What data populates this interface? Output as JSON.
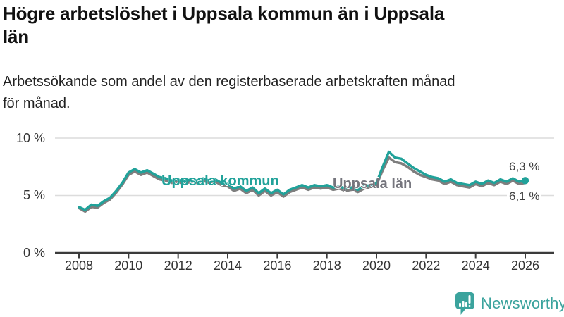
{
  "header": {
    "title_lines": [
      "Högre arbetslöshet i Uppsala kommun än i Uppsala",
      "län"
    ],
    "subtitle_lines": [
      "Arbetssökande som andel av den registerbaserade arbetskraften månad",
      "för månad."
    ]
  },
  "chart_data": {
    "type": "line",
    "title": "Högre arbetslöshet i Uppsala kommun än i Uppsala län",
    "subtitle": "Arbetssökande som andel av den registerbaserade arbetskraften månad för månad.",
    "xlabel": "",
    "ylabel": "",
    "ylim": [
      0,
      10
    ],
    "grid": "horizontal-only",
    "legend_position": "inline-labels-on-lines",
    "y_ticks": [
      0,
      5,
      10
    ],
    "y_tick_labels": [
      "0 %",
      "5 %",
      "10 %"
    ],
    "x_ticks": [
      2008,
      2010,
      2012,
      2014,
      2016,
      2018,
      2020,
      2022,
      2024,
      2026
    ],
    "x_tick_labels": [
      "2008",
      "2010",
      "2012",
      "2014",
      "2016",
      "2018",
      "2020",
      "2022",
      "2024",
      "2026"
    ],
    "x_unit": "year (monthly series, values estimated quarterly)",
    "x": [
      2008,
      2008.25,
      2008.5,
      2008.75,
      2009,
      2009.25,
      2009.5,
      2009.75,
      2010,
      2010.25,
      2010.5,
      2010.75,
      2011,
      2011.25,
      2011.5,
      2011.75,
      2012,
      2012.25,
      2012.5,
      2012.75,
      2013,
      2013.25,
      2013.5,
      2013.75,
      2014,
      2014.25,
      2014.5,
      2014.75,
      2015,
      2015.25,
      2015.5,
      2015.75,
      2016,
      2016.25,
      2016.5,
      2016.75,
      2017,
      2017.25,
      2017.5,
      2017.75,
      2018,
      2018.25,
      2018.5,
      2018.75,
      2019,
      2019.25,
      2019.5,
      2019.75,
      2020,
      2020.25,
      2020.5,
      2020.75,
      2021,
      2021.25,
      2021.5,
      2021.75,
      2022,
      2022.25,
      2022.5,
      2022.75,
      2023,
      2023.25,
      2023.5,
      2023.75,
      2024,
      2024.25,
      2024.5,
      2024.75,
      2025,
      2025.25,
      2025.5,
      2025.75,
      2026
    ],
    "series": [
      {
        "name": "Uppsala kommun",
        "color": "#21a29a",
        "label_color": "#21a29a",
        "end_label": "6,3 %",
        "end_value": 6.3,
        "end_dot": true,
        "values": [
          4.0,
          3.75,
          4.2,
          4.1,
          4.5,
          4.8,
          5.4,
          6.1,
          7.0,
          7.3,
          7.0,
          7.2,
          6.9,
          6.6,
          6.5,
          6.3,
          6.4,
          6.2,
          6.4,
          6.3,
          6.5,
          6.3,
          6.4,
          6.1,
          6.0,
          5.6,
          5.8,
          5.4,
          5.7,
          5.2,
          5.6,
          5.2,
          5.5,
          5.1,
          5.5,
          5.7,
          5.9,
          5.7,
          5.9,
          5.8,
          5.9,
          5.7,
          5.8,
          5.6,
          5.7,
          5.5,
          5.8,
          5.9,
          6.1,
          7.5,
          8.8,
          8.3,
          8.2,
          7.8,
          7.4,
          7.1,
          6.8,
          6.6,
          6.5,
          6.2,
          6.4,
          6.1,
          6.0,
          5.9,
          6.2,
          6.0,
          6.3,
          6.1,
          6.4,
          6.2,
          6.5,
          6.2,
          6.3
        ]
      },
      {
        "name": "Uppsala län",
        "color": "#7e7e7e",
        "label_color": "#75757d",
        "end_label": "6,1 %",
        "end_value": 6.1,
        "end_dot": false,
        "values": [
          3.9,
          3.6,
          4.0,
          3.95,
          4.35,
          4.65,
          5.25,
          5.95,
          6.8,
          7.1,
          6.8,
          7.0,
          6.7,
          6.4,
          6.3,
          6.1,
          6.2,
          6.0,
          6.2,
          6.1,
          6.3,
          6.1,
          6.2,
          5.9,
          5.8,
          5.4,
          5.6,
          5.2,
          5.5,
          5.0,
          5.4,
          5.0,
          5.3,
          4.9,
          5.3,
          5.5,
          5.7,
          5.5,
          5.7,
          5.6,
          5.7,
          5.5,
          5.6,
          5.4,
          5.5,
          5.3,
          5.6,
          5.7,
          5.9,
          7.2,
          8.3,
          7.9,
          7.8,
          7.5,
          7.1,
          6.8,
          6.6,
          6.4,
          6.3,
          6.0,
          6.2,
          5.9,
          5.8,
          5.7,
          6.0,
          5.8,
          6.1,
          5.9,
          6.2,
          6.0,
          6.3,
          6.0,
          6.1
        ]
      }
    ]
  },
  "footer": {
    "brand_name": "Newsworthy"
  },
  "colors": {
    "accent_teal": "#21a29a",
    "line_gray": "#7e7e7e",
    "series_label_gray": "#75757d",
    "axis": "#3b3b3b",
    "grid": "#dcdcdc",
    "title_text": "#111111",
    "body_text": "#222222",
    "tick_text": "#333333",
    "value_label_text": "#3d3d3d",
    "brand_teal": "#3ba39d",
    "background": "#ffffff"
  }
}
